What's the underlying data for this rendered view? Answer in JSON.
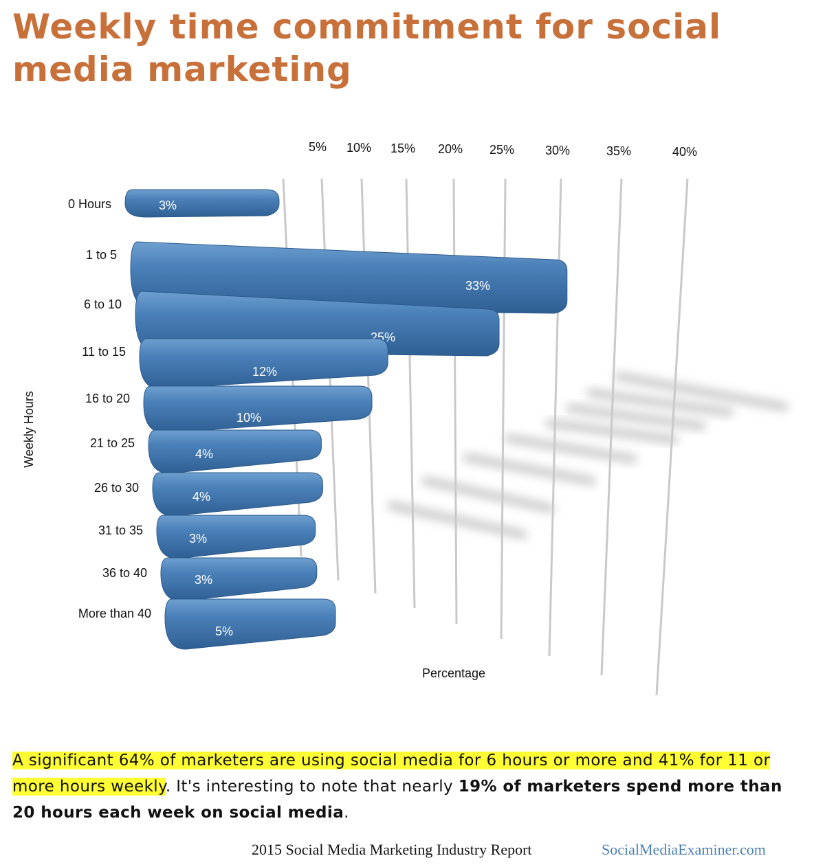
{
  "chart_data": {
    "type": "bar",
    "orientation": "horizontal",
    "title": "Weekly time commitment for social media marketing",
    "ylabel": "Weekly Hours",
    "xlabel": "Percentage",
    "categories": [
      "0 Hours",
      "1 to 5",
      "6 to 10",
      "11 to 15",
      "16 to 20",
      "21 to 25",
      "26 to 30",
      "31 to 35",
      "36 to 40",
      "More than 40"
    ],
    "values": [
      3,
      33,
      25,
      12,
      10,
      4,
      4,
      3,
      3,
      5
    ],
    "value_labels": [
      "3%",
      "33%",
      "25%",
      "12%",
      "10%",
      "4%",
      "4%",
      "3%",
      "3%",
      "5%"
    ],
    "x_ticks": [
      "5%",
      "10%",
      "15%",
      "20%",
      "25%",
      "30%",
      "35%",
      "40%"
    ],
    "xlim": [
      0,
      40
    ],
    "bar_color": "#3f77ad",
    "grid": true
  },
  "caption": {
    "highlight": "A significant 64% of marketers are using social media for 6 hours or more and 41% for 11 or more hours weekly",
    "rest_before": ". It's interesting to note that nearly ",
    "bold": "19% of marketers spend more than 20 hours each week on social media",
    "rest_after": "."
  },
  "footer": {
    "report": "2015 Social Media Marketing  Industry Report",
    "site": "SocialMediaExaminer.com"
  }
}
